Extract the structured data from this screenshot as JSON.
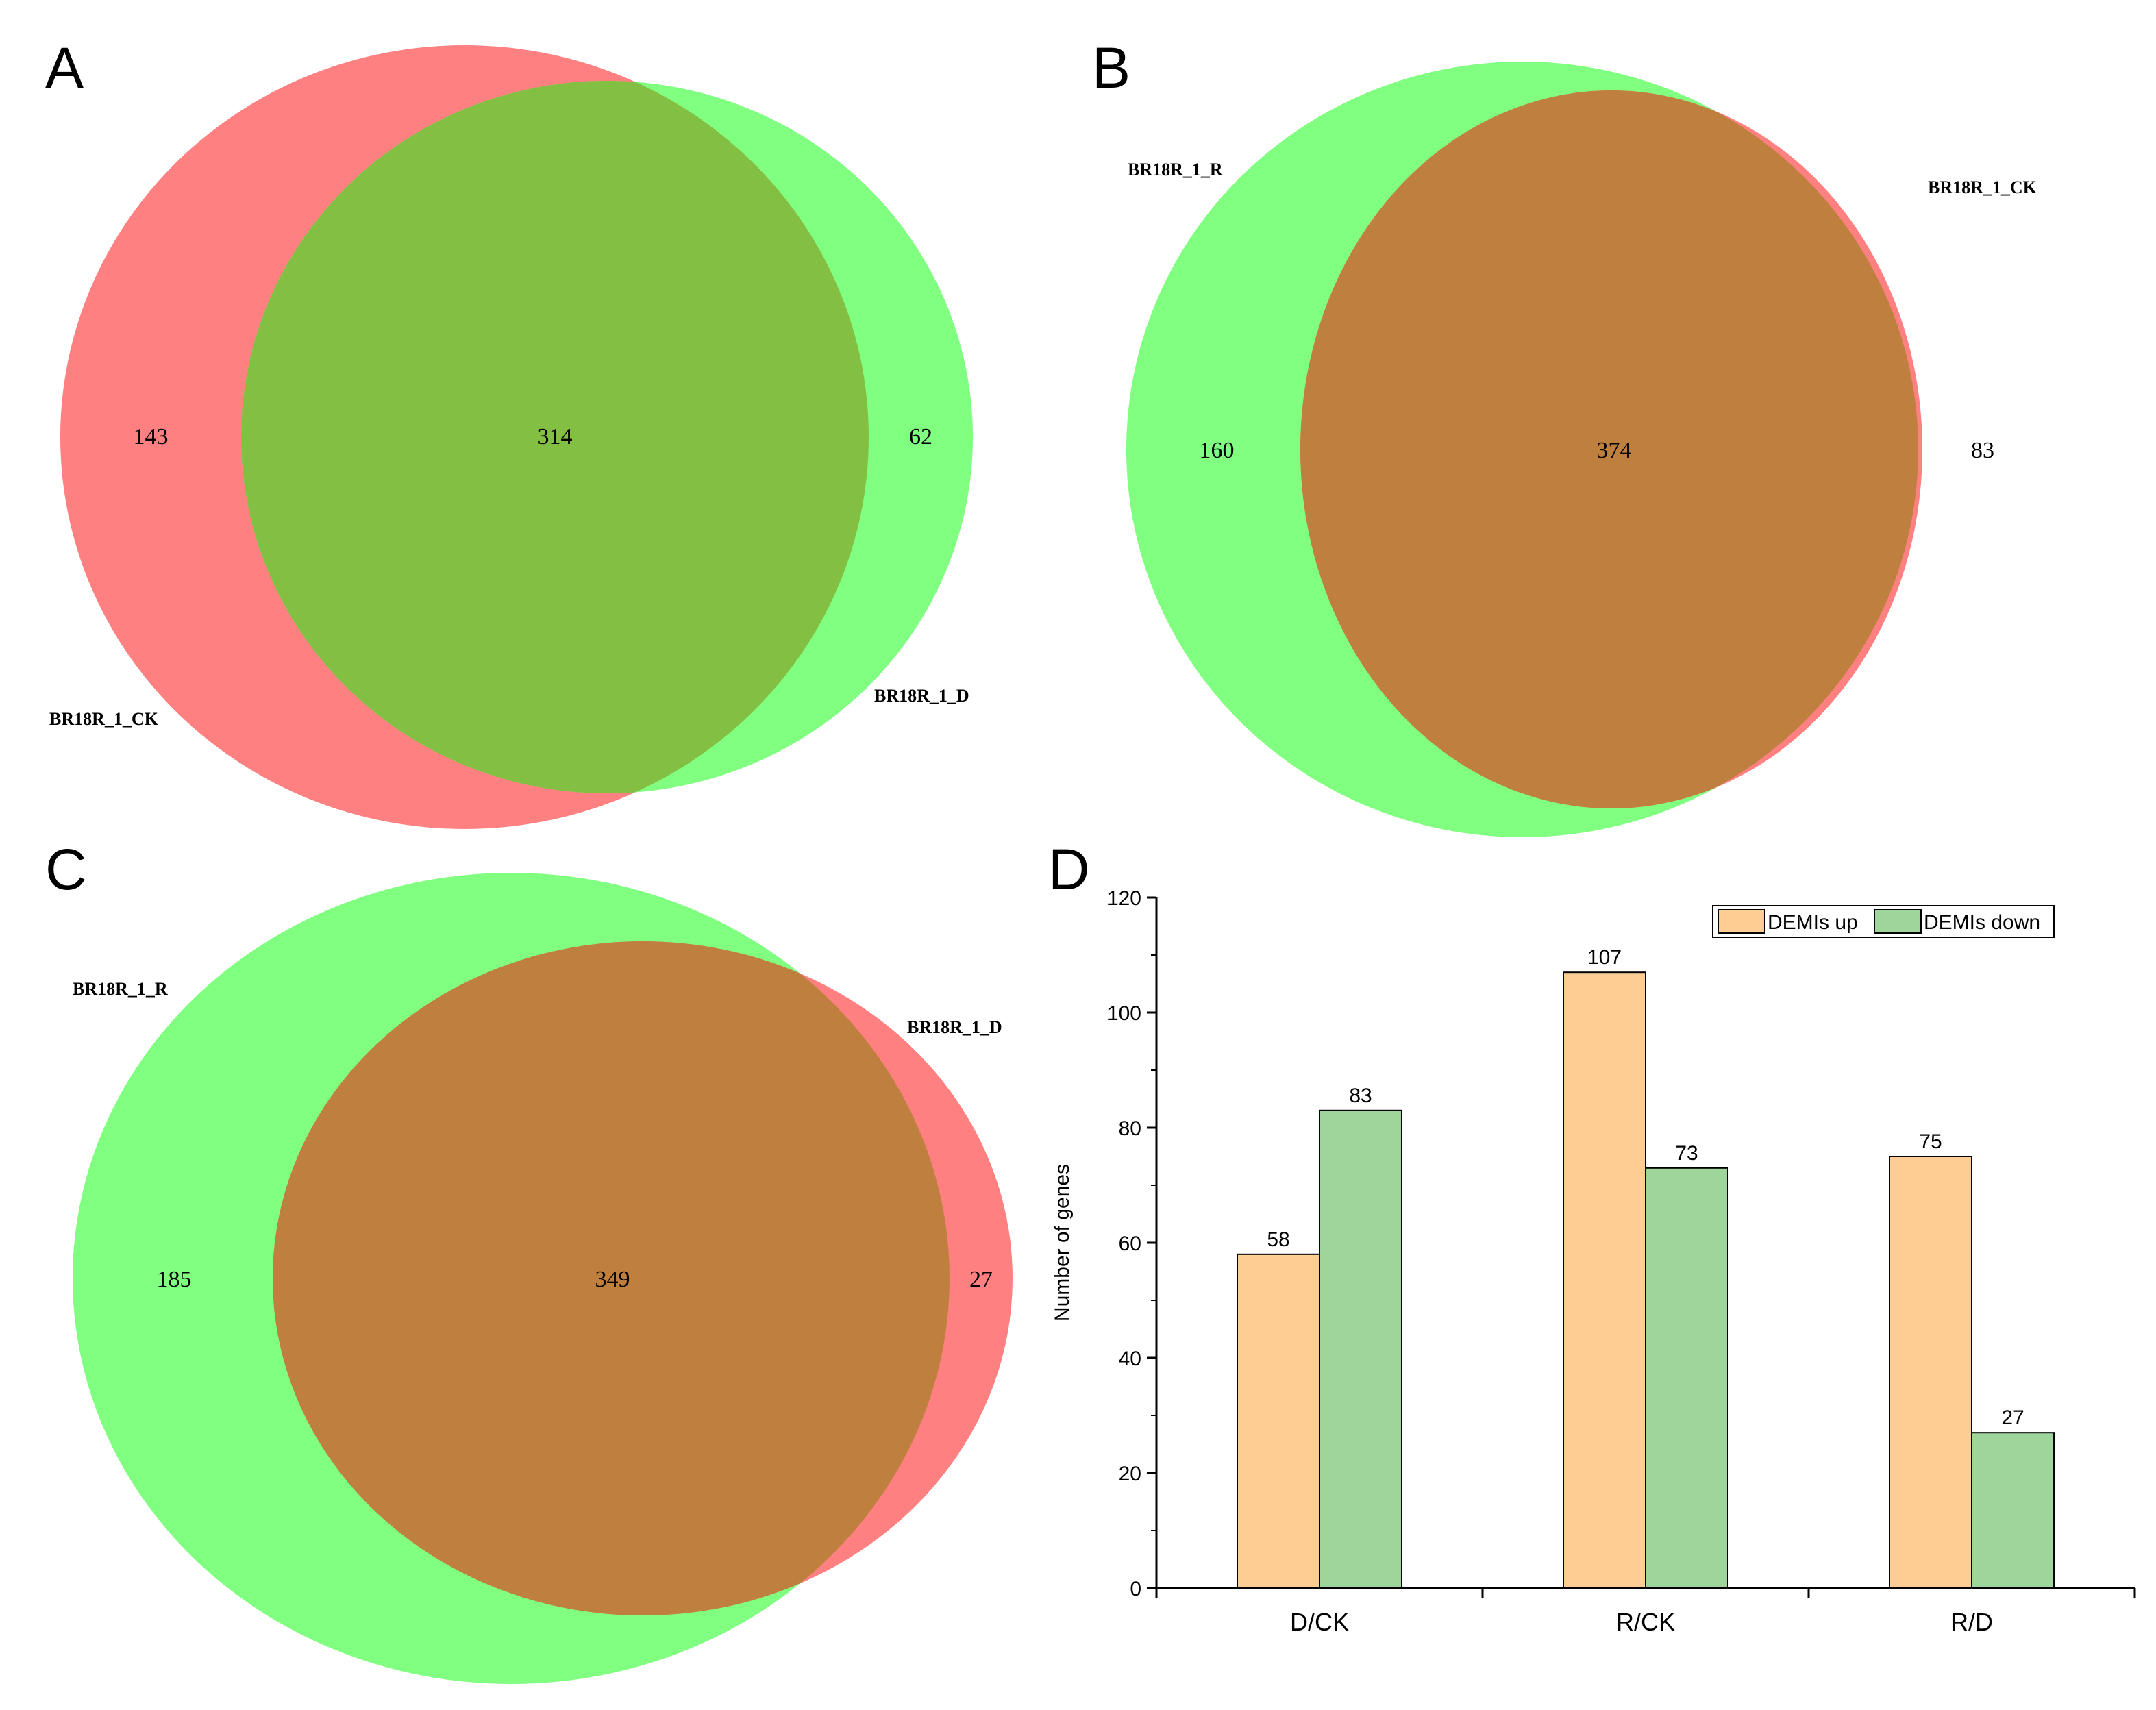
{
  "colors": {
    "red": "#ff8080",
    "green": "#80ff80",
    "overlap_a": "#83bf42",
    "overlap_bc": "#bf7f3f",
    "bar_up": "#fdcd93",
    "bar_down": "#9ed59b",
    "axis": "#000000"
  },
  "panels": {
    "a": {
      "letter": "A",
      "left_label": "BR18R_1_CK",
      "right_label": "BR18R_1_D",
      "left_only": "143",
      "overlap": "314",
      "right_only": "62"
    },
    "b": {
      "letter": "B",
      "left_label": "BR18R_1_R",
      "right_label": "BR18R_1_CK",
      "left_only": "160",
      "overlap": "374",
      "right_only": "83"
    },
    "c": {
      "letter": "C",
      "left_label": "BR18R_1_R",
      "right_label": "BR18R_1_D",
      "left_only": "185",
      "overlap": "349",
      "right_only": "27"
    },
    "d": {
      "letter": "D"
    }
  },
  "chart_data": {
    "type": "bar",
    "title": "",
    "xlabel": "",
    "ylabel": "Number of genes",
    "categories": [
      "D/CK",
      "R/CK",
      "R/D"
    ],
    "series": [
      {
        "name": "DEMIs up",
        "values": [
          58,
          107,
          75
        ]
      },
      {
        "name": "DEMIs down",
        "values": [
          83,
          73,
          27
        ]
      }
    ],
    "ylim": [
      0,
      120
    ],
    "yticks": [
      "0",
      "20",
      "40",
      "60",
      "80",
      "100",
      "120"
    ],
    "bar_labels": [
      [
        "58",
        "107",
        "75"
      ],
      [
        "83",
        "73",
        "27"
      ]
    ],
    "legend_position": "top-right"
  }
}
